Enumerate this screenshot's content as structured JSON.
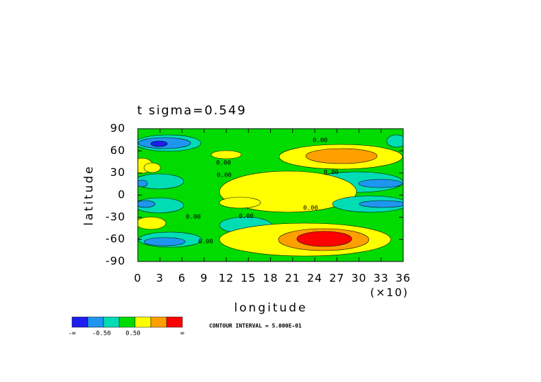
{
  "chart_data": {
    "type": "contour",
    "title": "t  sigma=0.549",
    "x_label": "longitude",
    "y_label": "latitude",
    "x_scale_label": "(×10)",
    "xlim": [
      0,
      36
    ],
    "xticks": [
      0,
      3,
      6,
      9,
      12,
      15,
      18,
      21,
      24,
      27,
      30,
      33,
      36
    ],
    "ylim": [
      -90,
      90
    ],
    "yticks": [
      90,
      60,
      30,
      0,
      -30,
      -60,
      -90
    ],
    "colorbar_colors": [
      "#1e1ef0",
      "#1e96f0",
      "#00dcb4",
      "#00dc00",
      "#ffff00",
      "#ffa000",
      "#ff0000"
    ],
    "colorbar_labels": [
      "-∞",
      {
        "value": -0.5,
        "label": "-0.50"
      },
      {
        "value": 0.5,
        "label": "0.50"
      },
      "∞"
    ],
    "contour_labels": [
      {
        "value": 0,
        "label": "0.00"
      },
      {
        "value": 0,
        "label": "0.00"
      },
      {
        "value": 0,
        "label": "0.00"
      },
      {
        "value": 0,
        "label": "0.00"
      },
      {
        "value": 0,
        "label": "0.00"
      },
      {
        "value": 0,
        "label": "0.00"
      },
      {
        "value": 0,
        "label": "0.00"
      },
      {
        "value": 0,
        "label": "0.00"
      }
    ],
    "contour_interval_label": "CONTOUR INTERVAL = 5.000E-01"
  }
}
